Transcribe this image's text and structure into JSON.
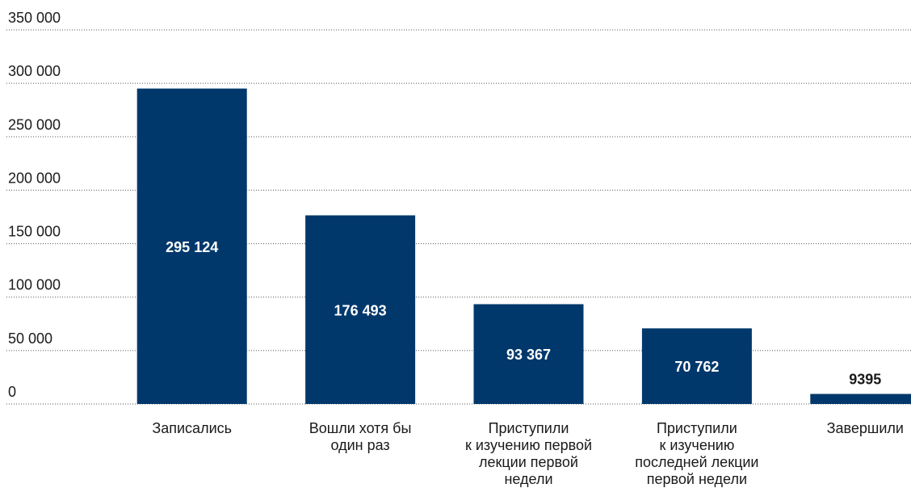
{
  "chart_data": {
    "type": "bar",
    "categories": [
      "Записались",
      "Вошли хотя бы\nодин раз",
      "Приступили\nк изучению первой\nлекции первой\nнедели",
      "Приступили\nк изучению\nпоследней лекции\nпервой недели",
      "Завершили"
    ],
    "values": [
      295124,
      176493,
      93367,
      70762,
      9395
    ],
    "value_labels": [
      "295 124",
      "176 493",
      "93 367",
      "70 762",
      "9395"
    ],
    "color": "#00386b",
    "ylim": [
      0,
      350000
    ],
    "yticks": [
      0,
      {
        "value": 50000,
        "label": "50 000"
      },
      {
        "value": 100000,
        "label": "100 000"
      },
      {
        "value": 150000,
        "label": "150 000"
      },
      {
        "value": 200000,
        "label": "200 000"
      },
      {
        "value": 250000,
        "label": "250 000"
      },
      {
        "value": 300000,
        "label": "300 000"
      },
      {
        "value": 350000,
        "label": "350 000"
      }
    ],
    "grid": true
  }
}
